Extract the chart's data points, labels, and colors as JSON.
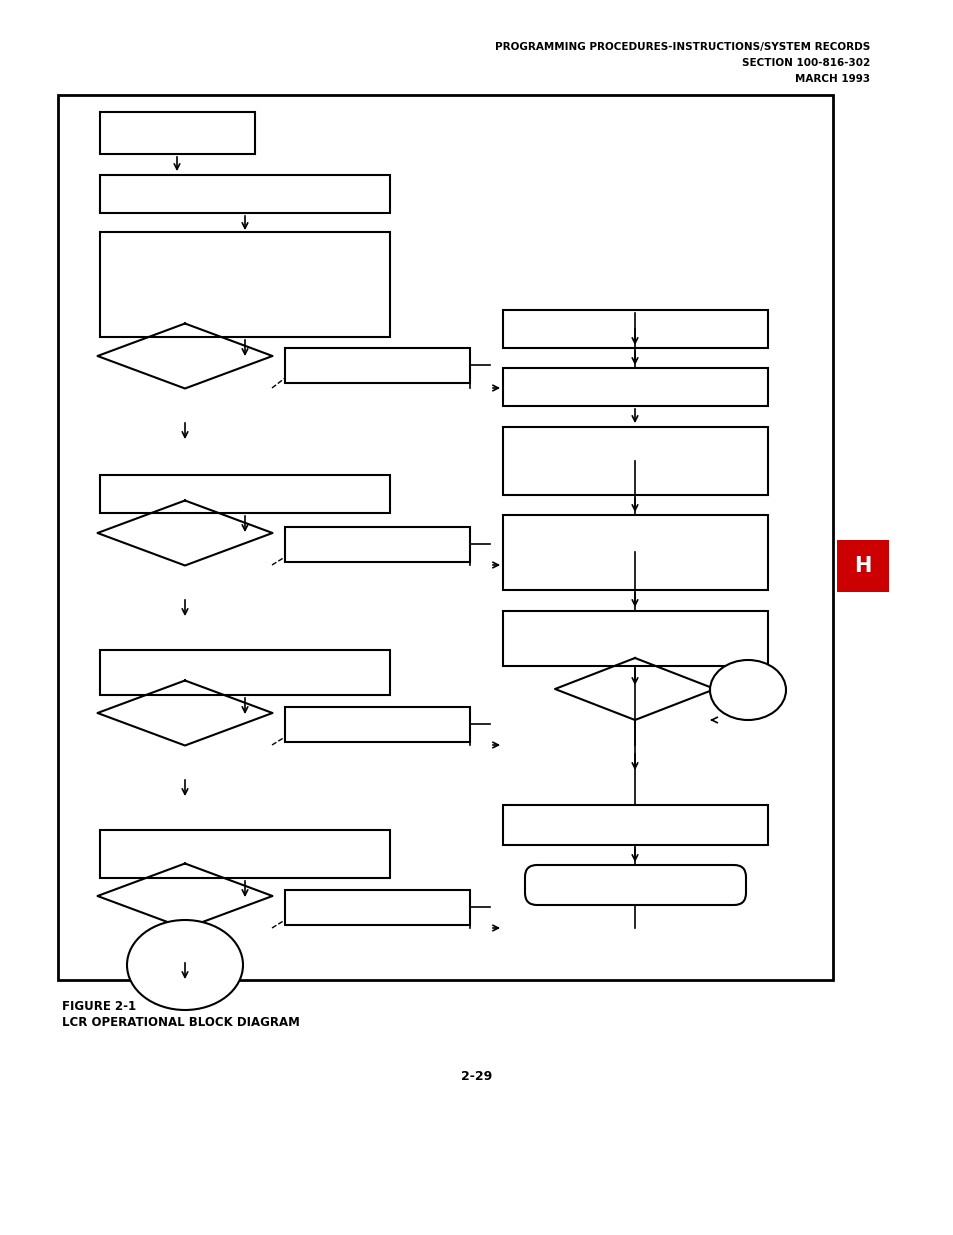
{
  "title_line1": "PROGRAMMING PROCEDURES-INSTRUCTIONS/SYSTEM RECORDS",
  "title_line2": "SECTION 100-816-302",
  "title_line3": "MARCH 1993",
  "figure_label": "FIGURE 2-1",
  "figure_title": "LCR OPERATIONAL BLOCK DIAGRAM",
  "page_number": "2-29",
  "h_label": "H",
  "bg_color": "#ffffff",
  "box_color": "#000000",
  "border_color": "#000000",
  "h_color": "#CC0000"
}
